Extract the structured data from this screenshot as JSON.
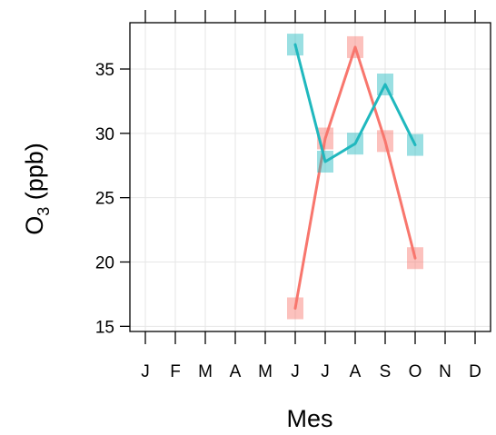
{
  "chart_data": {
    "type": "line",
    "title": "",
    "xlabel": "Mes",
    "ylabel": {
      "base": "O",
      "subscript": "3",
      "rest": " (ppb)"
    },
    "categories": [
      "J",
      "F",
      "M",
      "A",
      "M",
      "J",
      "J",
      "A",
      "S",
      "O",
      "N",
      "D"
    ],
    "ylim": [
      14.6,
      38.6
    ],
    "yticks": [
      "15",
      "20",
      "25",
      "30",
      "35"
    ],
    "grid": true,
    "legend": "none",
    "series": [
      {
        "color": "#F8766D",
        "values": [
          null,
          null,
          null,
          null,
          null,
          16.4,
          29.6,
          36.7,
          29.4,
          20.3,
          null,
          null
        ]
      },
      {
        "color": "#20B8BE",
        "values": [
          null,
          null,
          null,
          null,
          null,
          36.9,
          27.8,
          29.2,
          33.8,
          29.1,
          null,
          null
        ]
      }
    ]
  }
}
